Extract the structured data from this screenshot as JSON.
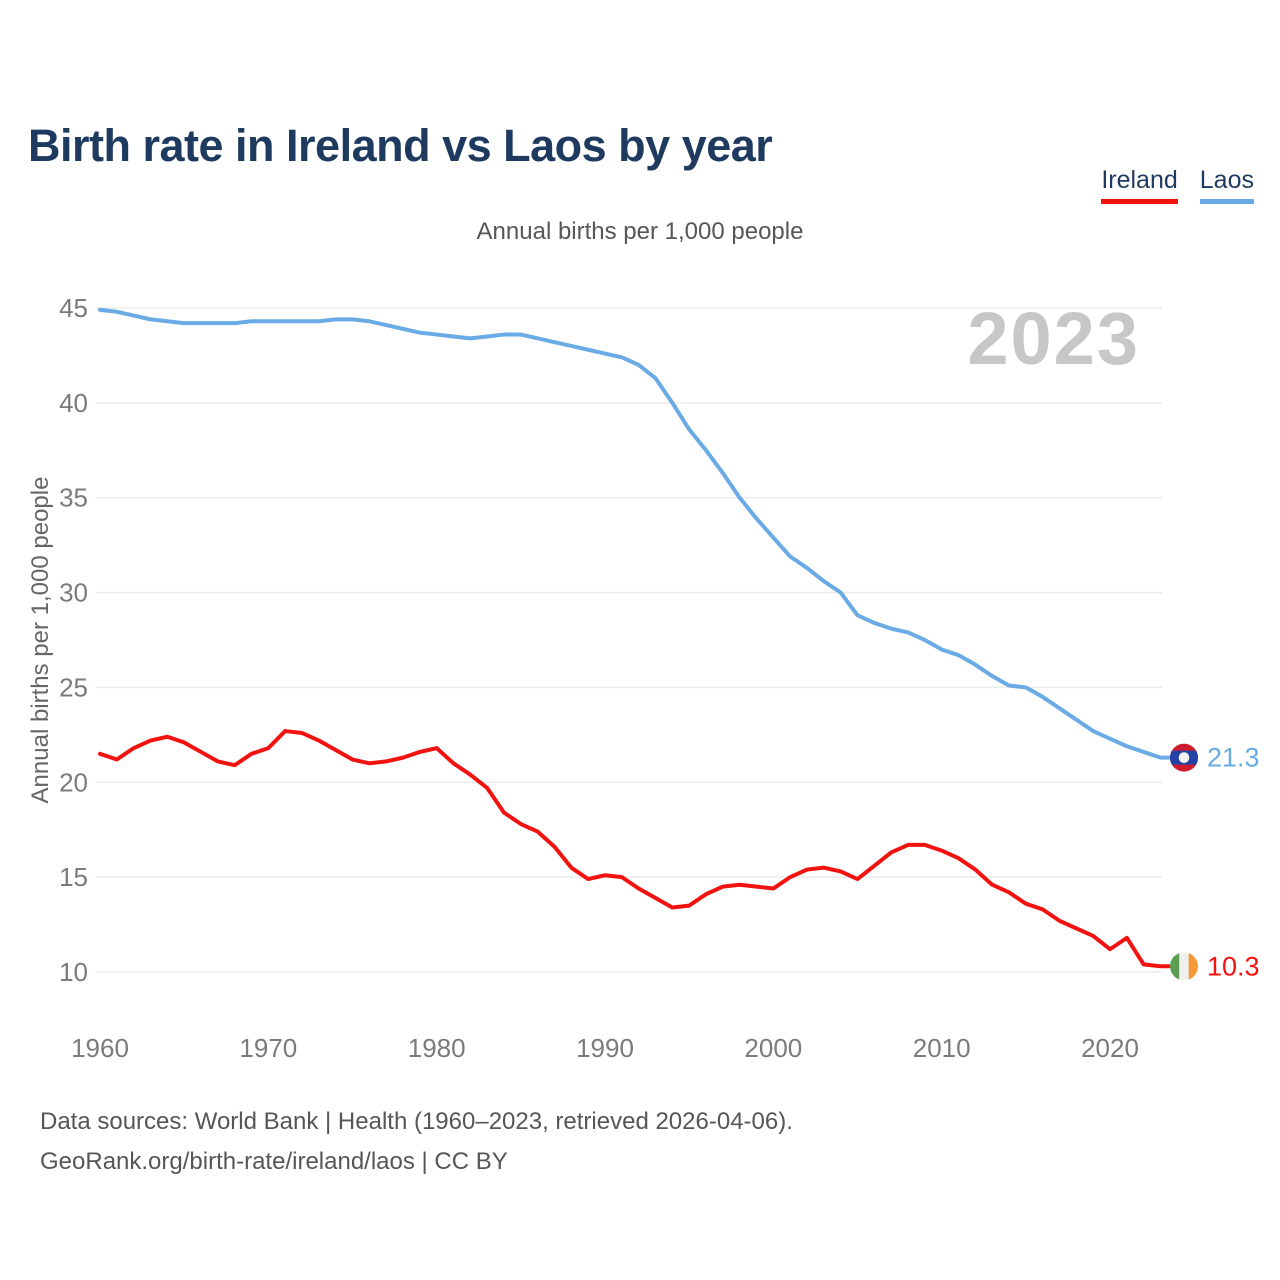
{
  "title": "Birth rate in Ireland vs Laos by year",
  "subtitle": "Annual births per 1,000 people",
  "watermark": "2023",
  "legend": [
    {
      "label": "Ireland",
      "color": "#f2120f"
    },
    {
      "label": "Laos",
      "color": "#6aabe6"
    }
  ],
  "footer": {
    "line1": "Data sources: World Bank | Health (1960–2023, retrieved 2026-04-06).",
    "line2": "GeoRank.org/birth-rate/ireland/laos | CC BY"
  },
  "colors": {
    "ireland_line": "#f2120f",
    "laos_line": "#6aabe6",
    "title_text": "#1e3a5f",
    "axis_text": "#7b7b7b",
    "muted_text": "#565656",
    "gridline": "#ebebeb",
    "watermark": "#c7c7c7"
  },
  "chart_data": {
    "type": "line",
    "title": "Birth rate in Ireland vs Laos by year",
    "subtitle": "Annual births per 1,000 people",
    "ylabel": "Annual births per 1,000 people",
    "xlabel": "",
    "grid": true,
    "legend_position": "top-right",
    "xlim": [
      1960,
      2023
    ],
    "ylim": [
      10,
      45
    ],
    "xticks": [
      1960,
      1970,
      1980,
      1990,
      2000,
      2010,
      2020
    ],
    "yticks": [
      10,
      15,
      20,
      25,
      30,
      35,
      40,
      45
    ],
    "x": [
      1960,
      1961,
      1962,
      1963,
      1964,
      1965,
      1966,
      1967,
      1968,
      1969,
      1970,
      1971,
      1972,
      1973,
      1974,
      1975,
      1976,
      1977,
      1978,
      1979,
      1980,
      1981,
      1982,
      1983,
      1984,
      1985,
      1986,
      1987,
      1988,
      1989,
      1990,
      1991,
      1992,
      1993,
      1994,
      1995,
      1996,
      1997,
      1998,
      1999,
      2000,
      2001,
      2002,
      2003,
      2004,
      2005,
      2006,
      2007,
      2008,
      2009,
      2010,
      2011,
      2012,
      2013,
      2014,
      2015,
      2016,
      2017,
      2018,
      2019,
      2020,
      2021,
      2022,
      2023
    ],
    "series": [
      {
        "name": "Laos",
        "color": "#6aabe6",
        "end_label": "21.3",
        "flag": "laos",
        "values": [
          44.9,
          44.8,
          44.6,
          44.4,
          44.3,
          44.2,
          44.2,
          44.2,
          44.2,
          44.3,
          44.3,
          44.3,
          44.3,
          44.3,
          44.4,
          44.4,
          44.3,
          44.1,
          43.9,
          43.7,
          43.6,
          43.5,
          43.4,
          43.5,
          43.6,
          43.6,
          43.4,
          43.2,
          43.0,
          42.8,
          42.6,
          42.4,
          42.0,
          41.3,
          40.0,
          38.6,
          37.5,
          36.3,
          35.0,
          33.9,
          32.9,
          31.9,
          31.3,
          30.6,
          30.0,
          28.8,
          28.4,
          28.1,
          27.9,
          27.5,
          27.0,
          26.7,
          26.2,
          25.6,
          25.1,
          25.0,
          24.5,
          23.9,
          23.3,
          22.7,
          22.3,
          21.9,
          21.6,
          21.3
        ]
      },
      {
        "name": "Ireland",
        "color": "#f2120f",
        "end_label": "10.3",
        "flag": "ireland",
        "values": [
          21.5,
          21.2,
          21.8,
          22.2,
          22.4,
          22.1,
          21.6,
          21.1,
          20.9,
          21.5,
          21.8,
          22.7,
          22.6,
          22.2,
          21.7,
          21.2,
          21.0,
          21.1,
          21.3,
          21.6,
          21.8,
          21.0,
          20.4,
          19.7,
          18.4,
          17.8,
          17.4,
          16.6,
          15.5,
          14.9,
          15.1,
          15.0,
          14.4,
          13.9,
          13.4,
          13.5,
          14.1,
          14.5,
          14.6,
          14.5,
          14.4,
          15.0,
          15.4,
          15.5,
          15.3,
          14.9,
          15.6,
          16.3,
          16.7,
          16.7,
          16.4,
          16.0,
          15.4,
          14.6,
          14.2,
          13.6,
          13.3,
          12.7,
          12.3,
          11.9,
          11.2,
          11.8,
          10.4,
          10.3
        ]
      }
    ],
    "flag_colors": {
      "laos": {
        "red": "#d01c2f",
        "blue": "#2342a5",
        "white": "#f2f2f2"
      },
      "ireland": {
        "green": "#5b9e51",
        "white": "#f0f0ee",
        "orange": "#f49937"
      }
    }
  }
}
